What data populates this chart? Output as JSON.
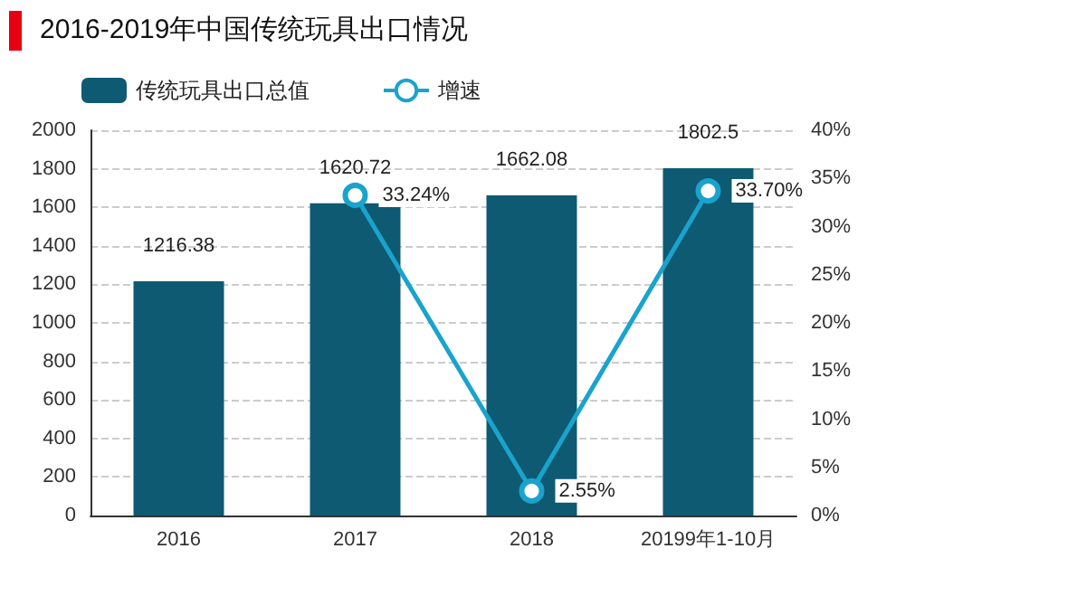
{
  "chart_data": {
    "type": "bar",
    "title": "2016-2019年中国传统玩具出口情况",
    "categories": [
      "2016",
      "2017",
      "2018",
      "20199年1-10月"
    ],
    "series": [
      {
        "name": "传统玩具出口总值",
        "color": "#0e5a73",
        "values": [
          1216.38,
          1620.72,
          1662.08,
          1802.5
        ],
        "value_labels": [
          "1216.38",
          "1620.72",
          "1662.08",
          "1802.5"
        ]
      },
      {
        "name": "增速",
        "type": "line",
        "axis": "y2",
        "color": "#1aa3cc",
        "values": [
          null,
          33.24,
          2.55,
          33.7
        ],
        "value_labels": [
          null,
          "33.24%",
          "2.55%",
          "33.70%"
        ]
      }
    ],
    "ylim": [
      0,
      2000
    ],
    "yticks": [
      0,
      200,
      400,
      600,
      800,
      1000,
      1200,
      1400,
      1600,
      1800,
      2000
    ],
    "y2lim": [
      0,
      40
    ],
    "y2ticks": [
      {
        "value": 0,
        "label": "0%"
      },
      {
        "value": 5,
        "label": "5%"
      },
      {
        "value": 10,
        "label": "10%"
      },
      {
        "value": 15,
        "label": "15%"
      },
      {
        "value": 20,
        "label": "20%"
      },
      {
        "value": 25,
        "label": "25%"
      },
      {
        "value": 30,
        "label": "30%"
      },
      {
        "value": 35,
        "label": "35%"
      },
      {
        "value": 40,
        "label": "40%"
      }
    ],
    "grid": "y",
    "legend": "top",
    "marker": "circle",
    "line_style": "solid"
  }
}
